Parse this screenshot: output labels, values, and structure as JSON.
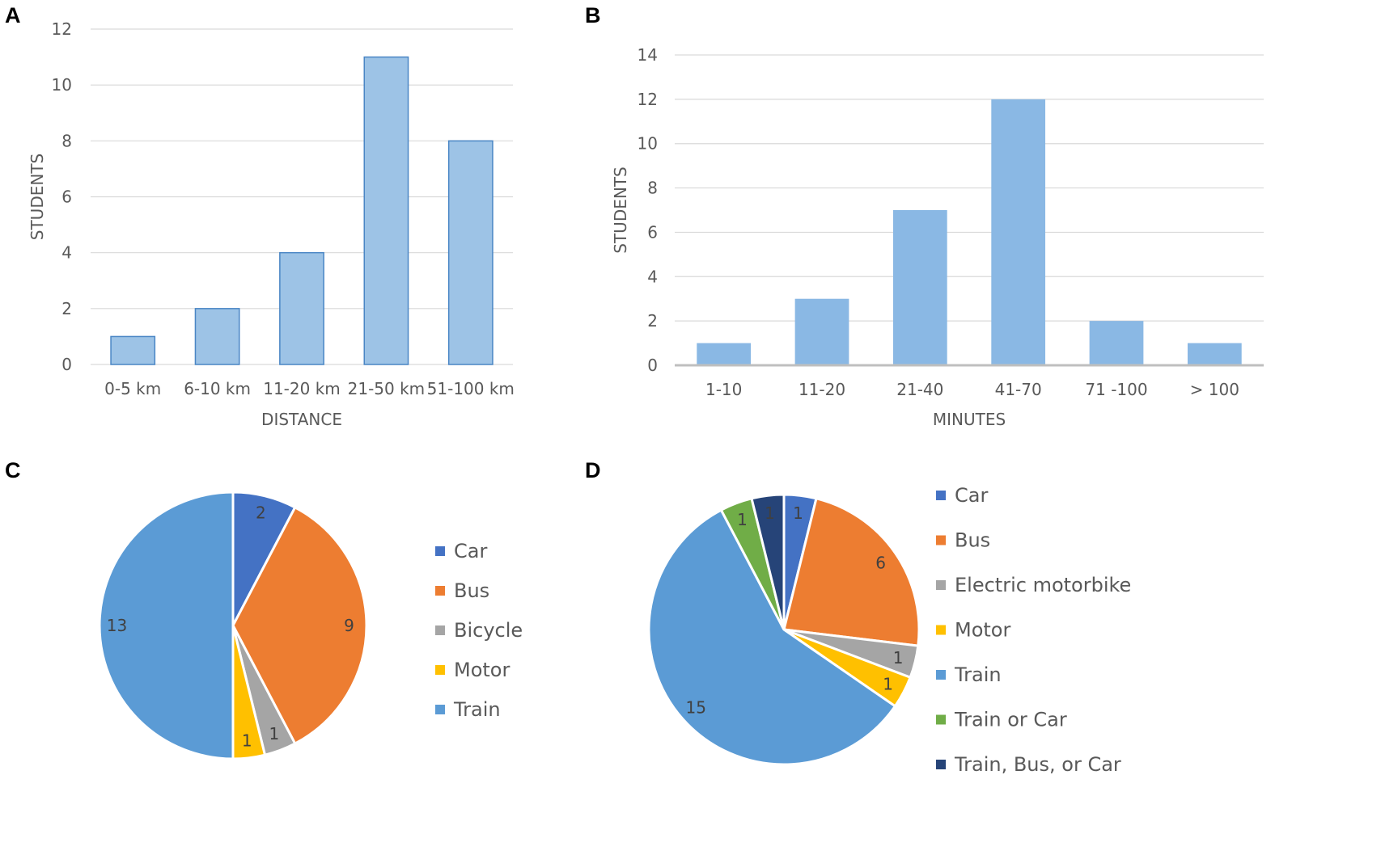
{
  "chart_data": [
    {
      "panel": "A",
      "type": "bar",
      "title": "",
      "categories": [
        "0-5 km",
        "6-10 km",
        "11-20 km",
        "21-50 km",
        "51-100 km"
      ],
      "values": [
        1,
        2,
        4,
        11,
        8
      ],
      "xlabel": "DISTANCE",
      "ylabel": "STUDENTS",
      "ylim": [
        0,
        12
      ],
      "yticks": [
        0,
        2,
        4,
        6,
        8,
        10,
        12
      ],
      "grid": true,
      "color": "#9dc3e6",
      "edge_color": "#4a86c5"
    },
    {
      "panel": "B",
      "type": "bar",
      "title": "",
      "categories": [
        "1-10",
        "11-20",
        "21-40",
        "41-70",
        "71 -100",
        "> 100"
      ],
      "values": [
        1,
        3,
        7,
        12,
        2,
        1
      ],
      "xlabel": "MINUTES",
      "ylabel": "STUDENTS",
      "ylim": [
        0,
        14
      ],
      "yticks": [
        0,
        2,
        4,
        6,
        8,
        10,
        12,
        14
      ],
      "grid": true,
      "color": "#8ab8e4"
    },
    {
      "panel": "C",
      "type": "pie",
      "title": "",
      "legend_position": "right",
      "slices": [
        {
          "label": "Car",
          "value": 2,
          "color": "#4472c4"
        },
        {
          "label": "Bus",
          "value": 9,
          "color": "#ed7d31"
        },
        {
          "label": "Bicycle",
          "value": 1,
          "color": "#a5a5a5"
        },
        {
          "label": "Motor",
          "value": 1,
          "color": "#ffc000"
        },
        {
          "label": "Train",
          "value": 13,
          "color": "#5b9bd5"
        }
      ]
    },
    {
      "panel": "D",
      "type": "pie",
      "title": "",
      "legend_position": "right",
      "slices": [
        {
          "label": "Car",
          "value": 1,
          "color": "#4472c4"
        },
        {
          "label": "Bus",
          "value": 6,
          "color": "#ed7d31"
        },
        {
          "label": "Electric motorbike",
          "value": 1,
          "color": "#a5a5a5"
        },
        {
          "label": "Motor",
          "value": 1,
          "color": "#ffc000"
        },
        {
          "label": "Train",
          "value": 15,
          "color": "#5b9bd5"
        },
        {
          "label": "Train or Car",
          "value": 1,
          "color": "#70ad47"
        },
        {
          "label": "Train, Bus, or Car",
          "value": 1,
          "color": "#264478"
        }
      ]
    }
  ]
}
